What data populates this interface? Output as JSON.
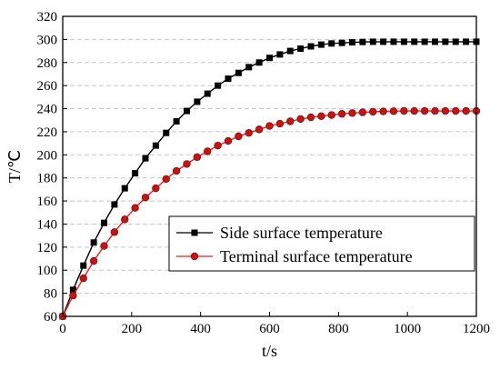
{
  "chart_data": {
    "type": "line",
    "title": "",
    "xlabel": "t/s",
    "ylabel": "T/℃",
    "xlim": [
      0,
      1200
    ],
    "ylim": [
      60,
      320
    ],
    "xticks": [
      0,
      200,
      400,
      600,
      800,
      1000,
      1200
    ],
    "yticks": [
      60,
      80,
      100,
      120,
      140,
      160,
      180,
      200,
      220,
      240,
      260,
      280,
      300,
      320
    ],
    "grid": "horizontal-dashed",
    "legend_position": "lower-right",
    "series": [
      {
        "name": "Side surface temperature",
        "color": "#000000",
        "marker": "square",
        "x": [
          0,
          30,
          60,
          90,
          120,
          150,
          180,
          210,
          240,
          270,
          300,
          330,
          360,
          390,
          420,
          450,
          480,
          510,
          540,
          570,
          600,
          630,
          660,
          690,
          720,
          750,
          780,
          810,
          840,
          870,
          900,
          930,
          960,
          990,
          1020,
          1050,
          1080,
          1110,
          1140,
          1170,
          1200
        ],
        "values": [
          60,
          83,
          104,
          124,
          141,
          157,
          171,
          184,
          197,
          208,
          219,
          229,
          238,
          246,
          253,
          260,
          266,
          271,
          276,
          280,
          284,
          287,
          290,
          292,
          294,
          295.5,
          296.5,
          297,
          297.5,
          297.8,
          298,
          298,
          298,
          298,
          298,
          298,
          298,
          298,
          298,
          298,
          298
        ]
      },
      {
        "name": "Terminal surface temperature",
        "color": "#ee1c1c",
        "marker": "circle",
        "x": [
          0,
          30,
          60,
          90,
          120,
          150,
          180,
          210,
          240,
          270,
          300,
          330,
          360,
          390,
          420,
          450,
          480,
          510,
          540,
          570,
          600,
          630,
          660,
          690,
          720,
          750,
          780,
          810,
          840,
          870,
          900,
          930,
          960,
          990,
          1020,
          1050,
          1080,
          1110,
          1140,
          1170,
          1200
        ],
        "values": [
          60,
          78,
          93,
          108,
          121,
          133,
          144,
          154,
          163,
          171,
          179,
          186,
          192,
          198,
          203,
          208,
          212,
          216,
          219,
          222,
          225,
          227,
          229,
          231,
          232.5,
          233.5,
          234.5,
          235.5,
          236.2,
          236.8,
          237.3,
          237.6,
          237.8,
          238,
          238,
          238,
          238,
          238,
          238,
          238,
          238
        ]
      }
    ]
  }
}
